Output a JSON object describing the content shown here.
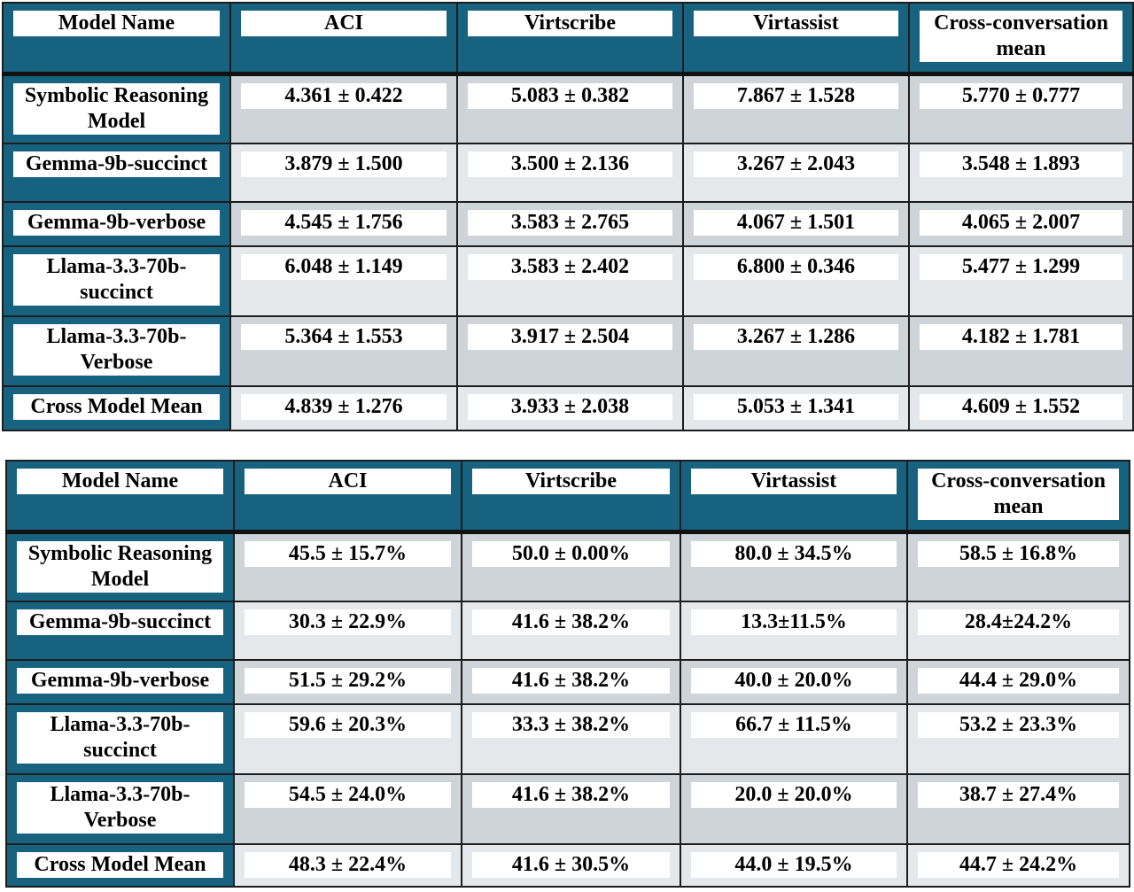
{
  "tables": [
    {
      "headers": [
        "Model Name",
        "ACI",
        "Virtscribe",
        "Virtassist",
        "Cross-conversation mean"
      ],
      "rows": [
        {
          "model": "Symbolic Reasoning Model",
          "values": [
            "4.361 ± 0.422",
            "5.083 ± 0.382",
            "7.867 ± 1.528",
            "5.770 ± 0.777"
          ]
        },
        {
          "model": "Gemma-9b-succinct",
          "values": [
            "3.879 ± 1.500",
            "3.500 ± 2.136",
            "3.267 ± 2.043",
            "3.548 ± 1.893"
          ]
        },
        {
          "model": "Gemma-9b-verbose",
          "values": [
            "4.545 ± 1.756",
            "3.583 ± 2.765",
            "4.067 ± 1.501",
            "4.065 ± 2.007"
          ]
        },
        {
          "model": "Llama-3.3-70b-succinct",
          "values": [
            "6.048 ± 1.149",
            "3.583 ± 2.402",
            "6.800 ± 0.346",
            "5.477 ± 1.299"
          ]
        },
        {
          "model": "Llama-3.3-70b-Verbose",
          "values": [
            "5.364 ± 1.553",
            "3.917 ± 2.504",
            "3.267 ± 1.286",
            "4.182 ± 1.781"
          ]
        },
        {
          "model": "Cross Model Mean",
          "values": [
            "4.839 ± 1.276",
            "3.933 ± 2.038",
            "5.053 ± 1.341",
            "4.609 ± 1.552"
          ]
        }
      ]
    },
    {
      "headers": [
        "Model Name",
        "ACI",
        "Virtscribe",
        "Virtassist",
        "Cross-conversation mean"
      ],
      "rows": [
        {
          "model": "Symbolic Reasoning Model",
          "values": [
            "45.5 ± 15.7%",
            "50.0 ± 0.00%",
            "80.0 ± 34.5%",
            "58.5 ± 16.8%"
          ]
        },
        {
          "model": "Gemma-9b-succinct",
          "values": [
            "30.3 ± 22.9%",
            "41.6 ± 38.2%",
            "13.3±11.5%",
            "28.4±24.2%"
          ]
        },
        {
          "model": "Gemma-9b-verbose",
          "values": [
            "51.5 ± 29.2%",
            "41.6 ± 38.2%",
            "40.0 ± 20.0%",
            "44.4 ± 29.0%"
          ]
        },
        {
          "model": "Llama-3.3-70b-succinct",
          "values": [
            "59.6 ± 20.3%",
            "33.3 ± 38.2%",
            "66.7 ± 11.5%",
            "53.2 ± 23.3%"
          ]
        },
        {
          "model": "Llama-3.3-70b-Verbose",
          "values": [
            "54.5 ± 24.0%",
            "41.6 ± 38.2%",
            "20.0 ± 20.0%",
            "38.7 ± 27.4%"
          ]
        },
        {
          "model": "Cross Model Mean",
          "values": [
            "48.3 ± 22.4%",
            "41.6 ± 30.5%",
            "44.0 ± 19.5%",
            "44.7 ± 24.2%"
          ]
        }
      ]
    }
  ]
}
